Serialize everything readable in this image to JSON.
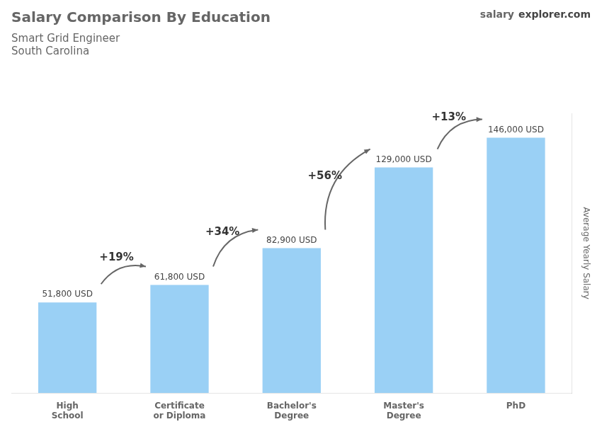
{
  "chart_data": {
    "type": "bar",
    "title": "Salary Comparison By Education",
    "subtitle": [
      "Smart Grid Engineer",
      "South Carolina"
    ],
    "watermark": [
      "salary",
      "explorer.com"
    ],
    "ylabel": "Average Yearly Salary",
    "categories": [
      "High\nSchool",
      "Certificate\nor Diploma",
      "Bachelor's\nDegree",
      "Master's\nDegree",
      "PhD"
    ],
    "values": [
      51800,
      61800,
      82900,
      129000,
      146000
    ],
    "value_labels": [
      "51,800 USD",
      "61,800 USD",
      "82,900 USD",
      "129,000 USD",
      "146,000 USD"
    ],
    "data_labels": true,
    "annotations": [
      "+19%",
      "+34%",
      "+56%",
      "+13%"
    ],
    "ylim": [
      0,
      160000
    ],
    "tick_labels": "x",
    "grid": false
  }
}
